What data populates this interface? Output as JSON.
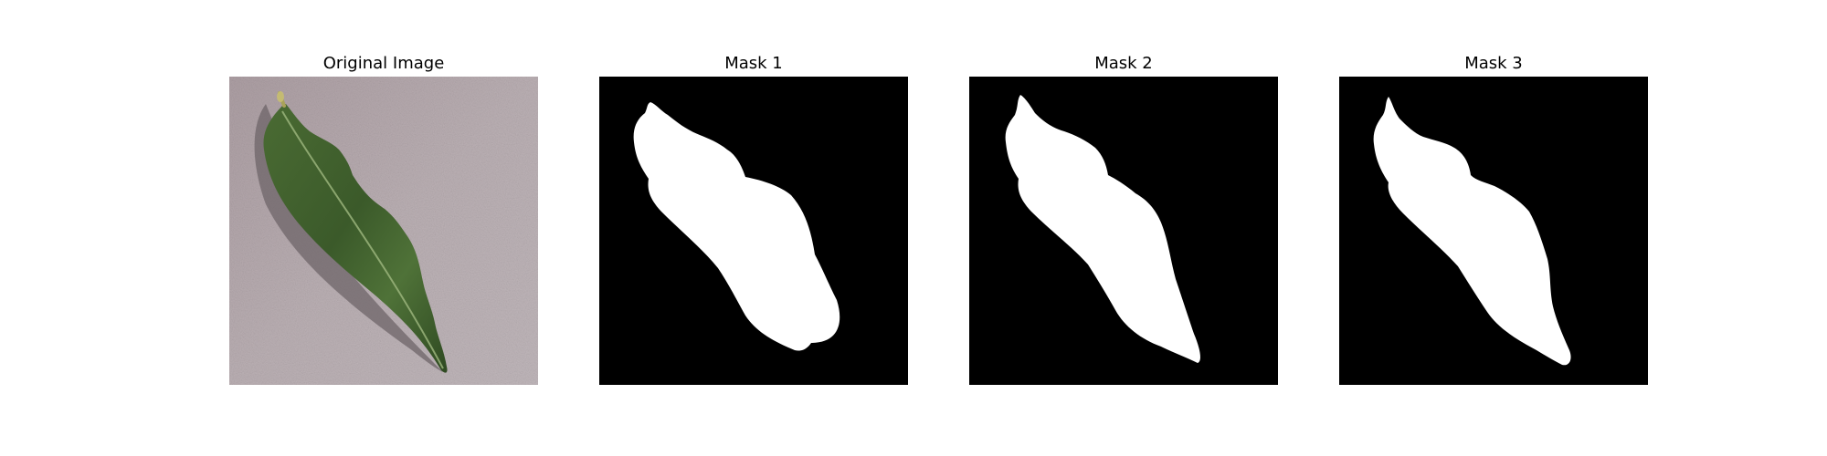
{
  "panels": [
    {
      "title": "Original Image",
      "kind": "photo",
      "colors": {
        "background": "#b5aaae",
        "leaf": "#3f5e2d",
        "shadow": "#6b6266"
      }
    },
    {
      "title": "Mask 1",
      "kind": "mask",
      "colors": {
        "background": "#000000",
        "foreground": "#ffffff"
      }
    },
    {
      "title": "Mask 2",
      "kind": "mask",
      "colors": {
        "background": "#000000",
        "foreground": "#ffffff"
      }
    },
    {
      "title": "Mask 3",
      "kind": "mask",
      "colors": {
        "background": "#000000",
        "foreground": "#ffffff"
      }
    }
  ]
}
